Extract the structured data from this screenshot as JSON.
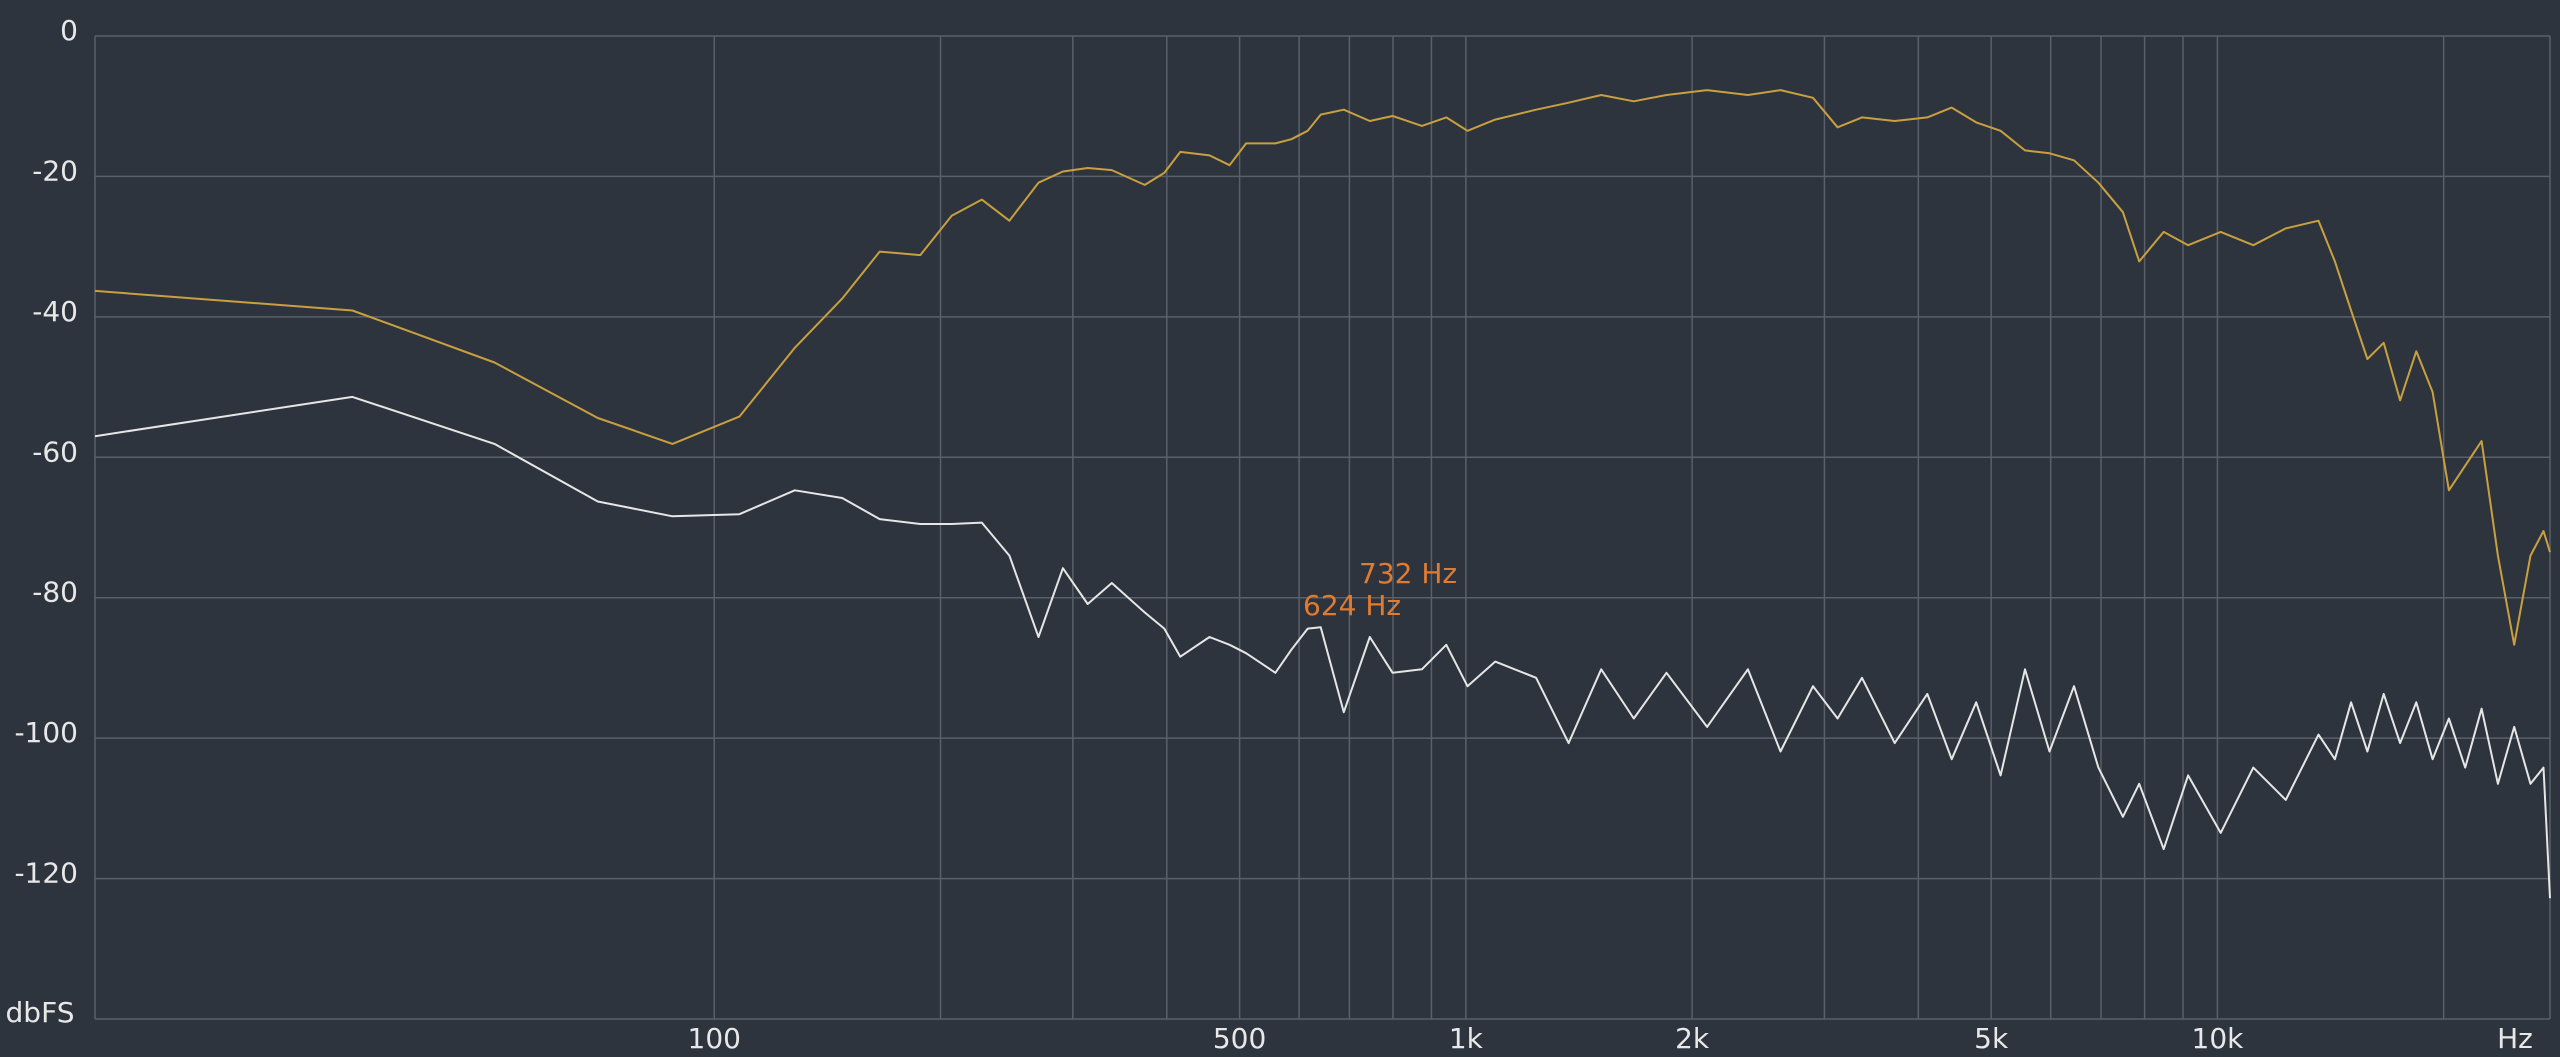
{
  "chart_data": {
    "type": "line",
    "log_x": true,
    "grid": true,
    "background": "#2e343d",
    "grid_color": "#59606a",
    "xlim": [
      15,
      27700
    ],
    "ylim": [
      -140,
      0
    ],
    "yticks": [
      0,
      -20,
      -40,
      -60,
      -80,
      -100,
      -120
    ],
    "xticks": [
      100,
      500,
      {
        "value": 1000,
        "label": "1k"
      },
      {
        "value": 2000,
        "label": "2k"
      },
      {
        "value": 5000,
        "label": "5k"
      },
      {
        "value": 10000,
        "label": "10k"
      }
    ],
    "xminor": [
      200,
      300,
      400,
      600,
      700,
      800,
      900,
      3000,
      4000,
      6000,
      7000,
      8000,
      9000,
      20000
    ],
    "xlabel": "Hz",
    "ylabel": "dbFS",
    "annotations": [
      {
        "text": "732 Hz",
        "color": "#e07b30"
      },
      {
        "text": "624 Hz",
        "color": "#e07b30"
      }
    ],
    "x": [
      15,
      33,
      51,
      70,
      88,
      108,
      128,
      148,
      166,
      188,
      207,
      227,
      247,
      270,
      291,
      314,
      338,
      374,
      397,
      417,
      456,
      485,
      510,
      558,
      586,
      616,
      641,
      688,
      745,
      799,
      874,
      942,
      1005,
      1094,
      1240,
      1370,
      1514,
      1673,
      1849,
      2094,
      2373,
      2622,
      2897,
      3123,
      3366,
      3720,
      4111,
      4430,
      4775,
      5147,
      5546,
      5978,
      6444,
      6945,
      7486,
      7868,
      8481,
      9141,
      10100,
      11160,
      12330,
      13630,
      14330,
      15060,
      15830,
      16640,
      17500,
      18390,
      19330,
      20320,
      21360,
      22460,
      23610,
      24820,
      26090,
      27150,
      27700
    ],
    "series": [
      {
        "color": "#c9a040",
        "values": [
          -36.3,
          -39.1,
          -46.5,
          -54.4,
          -58.1,
          -54.2,
          -44.4,
          -37.4,
          -30.7,
          -31.2,
          -25.6,
          -23.3,
          -26.3,
          -20.9,
          -19.3,
          -18.8,
          -19.1,
          -21.2,
          -19.5,
          -16.5,
          -17.0,
          -18.4,
          -15.3,
          -15.3,
          -14.7,
          -13.5,
          -11.2,
          -10.5,
          -12.1,
          -11.4,
          -12.8,
          -11.6,
          -13.5,
          -11.9,
          -10.5,
          -9.5,
          -8.4,
          -9.3,
          -8.4,
          -7.7,
          -8.4,
          -7.7,
          -8.8,
          -13.0,
          -11.6,
          -12.1,
          -11.6,
          -10.2,
          -12.3,
          -13.5,
          -16.3,
          -16.7,
          -17.7,
          -20.9,
          -25.1,
          -32.1,
          -27.9,
          -29.8,
          -27.9,
          -29.8,
          -27.4,
          -26.3,
          -32.1,
          -39.1,
          -46.0,
          -43.7,
          -51.9,
          -44.9,
          -50.7,
          -64.7,
          -61.2,
          -57.7,
          -74.0,
          -86.7,
          -74.0,
          -70.5,
          -73.5
        ]
      },
      {
        "color": "#e6e6e6",
        "values": [
          -57.0,
          -51.4,
          -58.1,
          -66.3,
          -68.4,
          -68.1,
          -64.7,
          -65.8,
          -68.8,
          -69.5,
          -69.5,
          -69.3,
          -74.0,
          -85.6,
          -75.8,
          -80.9,
          -77.9,
          -82.1,
          -84.4,
          -88.4,
          -85.6,
          -86.7,
          -87.9,
          -90.7,
          -87.4,
          -84.4,
          -84.2,
          -96.3,
          -85.6,
          -90.7,
          -90.2,
          -86.7,
          -92.6,
          -89.1,
          -91.4,
          -100.7,
          -90.2,
          -97.2,
          -90.7,
          -98.4,
          -90.2,
          -101.9,
          -92.6,
          -97.2,
          -91.4,
          -100.7,
          -93.7,
          -103.0,
          -94.9,
          -105.3,
          -90.2,
          -101.9,
          -92.6,
          -104.2,
          -111.2,
          -106.5,
          -115.8,
          -105.3,
          -113.5,
          -104.2,
          -108.8,
          -99.5,
          -103.0,
          -94.9,
          -101.9,
          -93.7,
          -100.7,
          -94.9,
          -103.0,
          -97.2,
          -104.2,
          -95.8,
          -106.5,
          -98.4,
          -106.5,
          -104.2,
          -122.8
        ]
      }
    ]
  }
}
